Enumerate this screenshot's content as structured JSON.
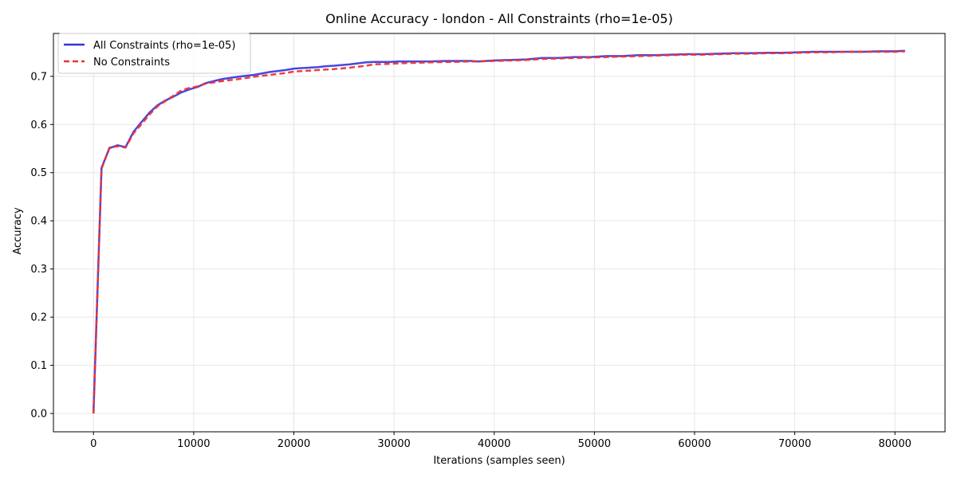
{
  "chart_data": {
    "type": "line",
    "title": "Online Accuracy - london - All Constraints (rho=1e-05)",
    "xlabel": "Iterations (samples seen)",
    "ylabel": "Accuracy",
    "xlim": [
      -4000,
      85000
    ],
    "ylim": [
      -0.038,
      0.789
    ],
    "xticks": [
      0,
      10000,
      20000,
      30000,
      40000,
      50000,
      60000,
      70000,
      80000
    ],
    "yticks": [
      0.0,
      0.1,
      0.2,
      0.3,
      0.4,
      0.5,
      0.6,
      0.7
    ],
    "ytick_labels": [
      "0.0",
      "0.1",
      "0.2",
      "0.3",
      "0.4",
      "0.5",
      "0.6",
      "0.7"
    ],
    "grid": true,
    "legend_position": "upper-left",
    "series": [
      {
        "name": "All Constraints (rho=1e-05)",
        "color": "#3333dd",
        "style": "solid",
        "x": [
          0,
          800,
          1600,
          2400,
          3200,
          4000,
          4800,
          5600,
          6400,
          7200,
          8000,
          8800,
          9600,
          10400,
          11200,
          12800,
          14400,
          16000,
          17600,
          19200,
          20000,
          21600,
          22400,
          23200,
          24000,
          25600,
          27200,
          28000,
          29600,
          30400,
          32000,
          33600,
          35200,
          36000,
          37600,
          38400,
          40000,
          41600,
          43200,
          44800,
          46400,
          48000,
          49600,
          51200,
          52800,
          54400,
          56000,
          57600,
          59200,
          60800,
          62400,
          64000,
          65600,
          67200,
          68800,
          70400,
          72000,
          73600,
          75200,
          76800,
          78400,
          80000,
          81000
        ],
        "y": [
          0.0,
          0.51,
          0.551,
          0.557,
          0.553,
          0.585,
          0.605,
          0.625,
          0.64,
          0.65,
          0.658,
          0.667,
          0.673,
          0.678,
          0.686,
          0.694,
          0.699,
          0.703,
          0.709,
          0.713,
          0.716,
          0.718,
          0.719,
          0.721,
          0.722,
          0.725,
          0.729,
          0.73,
          0.73,
          0.731,
          0.731,
          0.731,
          0.732,
          0.732,
          0.732,
          0.731,
          0.733,
          0.734,
          0.735,
          0.738,
          0.738,
          0.74,
          0.74,
          0.742,
          0.742,
          0.744,
          0.744,
          0.745,
          0.746,
          0.746,
          0.747,
          0.748,
          0.748,
          0.749,
          0.749,
          0.75,
          0.751,
          0.751,
          0.751,
          0.751,
          0.752,
          0.752,
          0.753
        ]
      },
      {
        "name": "No Constraints",
        "color": "#ee3333",
        "style": "dashed",
        "x": [
          0,
          800,
          1600,
          2400,
          3200,
          4000,
          4800,
          5600,
          6400,
          7200,
          8000,
          8800,
          9600,
          10400,
          11200,
          12800,
          14400,
          16000,
          17600,
          19200,
          20000,
          21600,
          22400,
          23200,
          24000,
          25600,
          27200,
          28000,
          29600,
          30400,
          32000,
          33600,
          35200,
          36000,
          37600,
          38400,
          40000,
          41600,
          43200,
          44800,
          46400,
          48000,
          49600,
          51200,
          52800,
          54400,
          56000,
          57600,
          59200,
          60800,
          62400,
          64000,
          65600,
          67200,
          68800,
          70400,
          72000,
          73600,
          75200,
          76800,
          78400,
          80000,
          81000
        ],
        "y": [
          0.0,
          0.508,
          0.552,
          0.555,
          0.552,
          0.582,
          0.601,
          0.621,
          0.638,
          0.649,
          0.66,
          0.671,
          0.676,
          0.679,
          0.685,
          0.69,
          0.694,
          0.699,
          0.703,
          0.707,
          0.71,
          0.712,
          0.713,
          0.714,
          0.715,
          0.718,
          0.722,
          0.725,
          0.726,
          0.727,
          0.728,
          0.729,
          0.73,
          0.73,
          0.731,
          0.731,
          0.732,
          0.733,
          0.734,
          0.736,
          0.737,
          0.738,
          0.739,
          0.74,
          0.741,
          0.742,
          0.743,
          0.744,
          0.745,
          0.745,
          0.746,
          0.747,
          0.747,
          0.748,
          0.748,
          0.749,
          0.75,
          0.75,
          0.751,
          0.751,
          0.751,
          0.751,
          0.752
        ]
      }
    ]
  }
}
